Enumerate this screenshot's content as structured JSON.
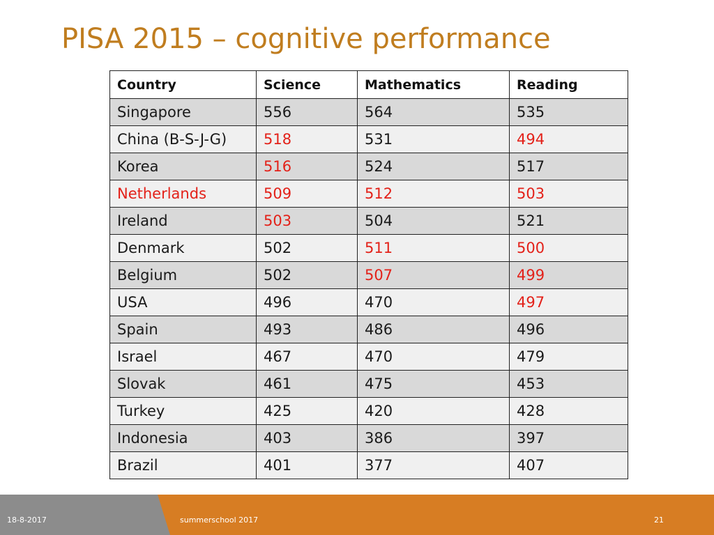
{
  "slide": {
    "title": "PISA 2015 – cognitive performance"
  },
  "table": {
    "headers": [
      "Country",
      "Science",
      "Mathematics",
      "Reading"
    ],
    "rows": [
      {
        "cells": [
          "Singapore",
          "556",
          "564",
          "535"
        ],
        "highlight": [
          false,
          false,
          false,
          false
        ]
      },
      {
        "cells": [
          "China (B-S-J-G)",
          "518",
          "531",
          "494"
        ],
        "highlight": [
          false,
          true,
          false,
          true
        ]
      },
      {
        "cells": [
          "Korea",
          "516",
          "524",
          "517"
        ],
        "highlight": [
          false,
          true,
          false,
          false
        ]
      },
      {
        "cells": [
          "Netherlands",
          "509",
          "512",
          "503"
        ],
        "highlight": [
          true,
          true,
          true,
          true
        ]
      },
      {
        "cells": [
          "Ireland",
          "503",
          "504",
          "521"
        ],
        "highlight": [
          false,
          true,
          false,
          false
        ]
      },
      {
        "cells": [
          "Denmark",
          "502",
          "511",
          "500"
        ],
        "highlight": [
          false,
          false,
          true,
          true
        ]
      },
      {
        "cells": [
          "Belgium",
          "502",
          "507",
          "499"
        ],
        "highlight": [
          false,
          false,
          true,
          true
        ]
      },
      {
        "cells": [
          "USA",
          "496",
          "470",
          "497"
        ],
        "highlight": [
          false,
          false,
          false,
          true
        ]
      },
      {
        "cells": [
          "Spain",
          "493",
          "486",
          "496"
        ],
        "highlight": [
          false,
          false,
          false,
          false
        ]
      },
      {
        "cells": [
          "Israel",
          "467",
          "470",
          "479"
        ],
        "highlight": [
          false,
          false,
          false,
          false
        ]
      },
      {
        "cells": [
          "Slovak",
          "461",
          "475",
          "453"
        ],
        "highlight": [
          false,
          false,
          false,
          false
        ]
      },
      {
        "cells": [
          "Turkey",
          "425",
          "420",
          "428"
        ],
        "highlight": [
          false,
          false,
          false,
          false
        ]
      },
      {
        "cells": [
          "Indonesia",
          "403",
          "386",
          "397"
        ],
        "highlight": [
          false,
          false,
          false,
          false
        ]
      },
      {
        "cells": [
          "Brazil",
          "401",
          "377",
          "407"
        ],
        "highlight": [
          false,
          false,
          false,
          false
        ]
      }
    ]
  },
  "footer": {
    "date": "18-8-2017",
    "event": "summerschool 2017",
    "page_number": "21"
  },
  "colors": {
    "title": "#c07d1f",
    "highlight_text": "#e32119",
    "footer_orange": "#d77d23",
    "footer_gray": "#8c8c8c"
  }
}
